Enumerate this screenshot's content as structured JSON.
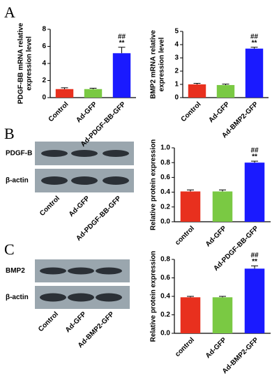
{
  "panels": [
    "A",
    "B",
    "C"
  ],
  "blots": [
    {
      "rows": [
        "PDGF-B",
        "β-actin"
      ],
      "lanes": [
        "Control",
        "Ad-GFP",
        "Ad-PDGF-BB-GFP"
      ]
    },
    {
      "rows": [
        "BMP2",
        "β-actin"
      ],
      "lanes": [
        "Control",
        "Ad-GFP",
        "Ad-BMP2-GFP"
      ]
    }
  ],
  "chart_data": [
    {
      "type": "bar",
      "ylabel": [
        "PDGF-BB mRNA relative",
        "expression level"
      ],
      "categories": [
        "Control",
        "Ad-GFP",
        "Ad-PDGF-BB-GFP"
      ],
      "values": [
        1.0,
        1.0,
        5.2
      ],
      "errors": [
        0.15,
        0.1,
        0.7
      ],
      "colors": [
        "#e8301e",
        "#7ac943",
        "#1a1aff"
      ],
      "ylim": [
        0,
        8
      ],
      "yticks": [
        0,
        2,
        4,
        6,
        8
      ],
      "annotations": [
        "##",
        "**"
      ]
    },
    {
      "type": "bar",
      "ylabel": [
        "BMP2 mRNA relative",
        "expression level"
      ],
      "categories": [
        "Control",
        "Ad-GFP",
        "Ad-BMP2-GFP"
      ],
      "values": [
        1.0,
        0.95,
        3.7
      ],
      "errors": [
        0.08,
        0.07,
        0.1
      ],
      "colors": [
        "#e8301e",
        "#7ac943",
        "#1a1aff"
      ],
      "ylim": [
        0,
        5
      ],
      "yticks": [
        0,
        1,
        2,
        3,
        4,
        5
      ],
      "annotations": [
        "##",
        "**"
      ]
    },
    {
      "type": "bar",
      "ylabel": [
        "Relative protein expression"
      ],
      "categories": [
        "control",
        "Ad-GFP",
        "Ad-PDGF-BB-GFP"
      ],
      "values": [
        0.41,
        0.41,
        0.8
      ],
      "errors": [
        0.02,
        0.02,
        0.02
      ],
      "colors": [
        "#e8301e",
        "#7ac943",
        "#1a1aff"
      ],
      "ylim": [
        0,
        1.0
      ],
      "yticks": [
        {
          "value": 0,
          "label": "0.0"
        },
        0.2,
        0.4,
        0.6,
        0.8,
        {
          "value": 1.0,
          "label": "1.0"
        }
      ],
      "annotations": [
        "##",
        "**"
      ]
    },
    {
      "type": "bar",
      "ylabel": [
        "Relative protein expression"
      ],
      "categories": [
        "control",
        "Ad-GFP",
        "Ad-BMP2-GFP"
      ],
      "values": [
        0.39,
        0.39,
        0.7
      ],
      "errors": [
        0.01,
        0.01,
        0.03
      ],
      "colors": [
        "#e8301e",
        "#7ac943",
        "#1a1aff"
      ],
      "ylim": [
        0,
        0.8
      ],
      "yticks": [
        {
          "value": 0,
          "label": "0.0"
        },
        0.2,
        0.4,
        0.6,
        0.8
      ],
      "annotations": [
        "##",
        "**"
      ]
    }
  ]
}
